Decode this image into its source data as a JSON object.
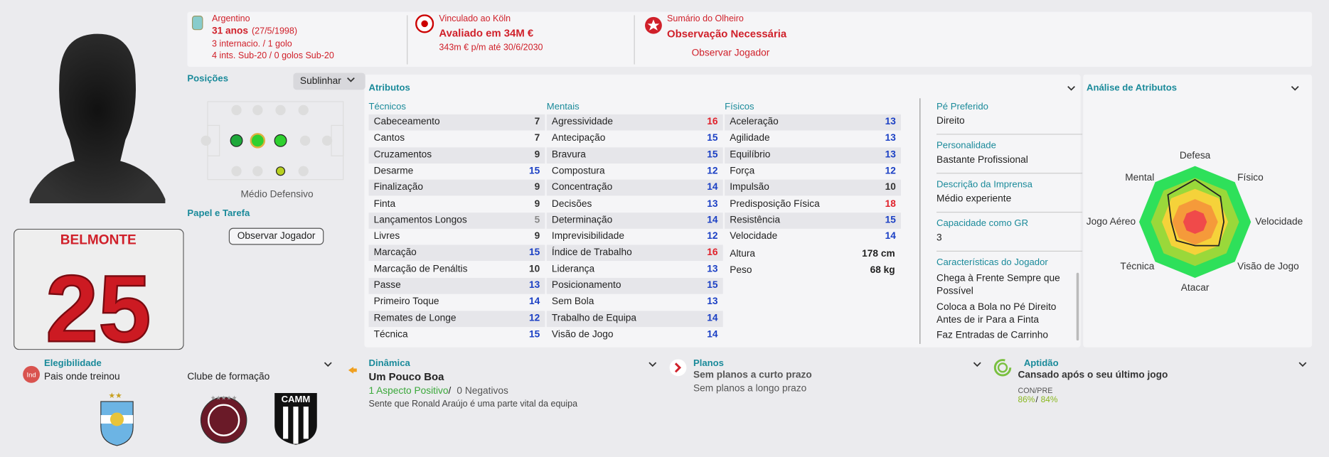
{
  "header": {
    "nationality": "Argentino",
    "age": "31 anos",
    "dob": "(27/5/1998)",
    "caps": "3 internacio. / 1 golo",
    "u20": "4 ints. Sub-20 / 0 golos Sub-20",
    "contract_label": "Vinculado ao Köln",
    "value": "Avaliado em 34M €",
    "wage": "343m € p/m até 30/6/2030",
    "scout_label": "Sumário do Olheiro",
    "scout_status": "Observação Necessária",
    "scout_button": "Observar Jogador"
  },
  "jersey": {
    "name": "BELMONTE",
    "number": "25"
  },
  "positions": {
    "title": "Posições",
    "highlight_button": "Sublinhar",
    "role": "Médio Defensivo",
    "role_title": "Papel e Tarefa",
    "role_button": "Observar Jogador"
  },
  "attributes": {
    "title": "Atributos",
    "groups": [
      {
        "title": "Técnicos",
        "items": [
          {
            "name": "Cabeceamento",
            "value": 7
          },
          {
            "name": "Cantos",
            "value": 7
          },
          {
            "name": "Cruzamentos",
            "value": 9
          },
          {
            "name": "Desarme",
            "value": 15
          },
          {
            "name": "Finalização",
            "value": 9
          },
          {
            "name": "Finta",
            "value": 9
          },
          {
            "name": "Lançamentos Longos",
            "value": 5
          },
          {
            "name": "Livres",
            "value": 9
          },
          {
            "name": "Marcação",
            "value": 15
          },
          {
            "name": "Marcação de Penáltis",
            "value": 10
          },
          {
            "name": "Passe",
            "value": 13
          },
          {
            "name": "Primeiro Toque",
            "value": 14
          },
          {
            "name": "Remates de Longe",
            "value": 12
          },
          {
            "name": "Técnica",
            "value": 15
          }
        ]
      },
      {
        "title": "Mentais",
        "items": [
          {
            "name": "Agressividade",
            "value": 16
          },
          {
            "name": "Antecipação",
            "value": 15
          },
          {
            "name": "Bravura",
            "value": 15
          },
          {
            "name": "Compostura",
            "value": 12
          },
          {
            "name": "Concentração",
            "value": 14
          },
          {
            "name": "Decisões",
            "value": 13
          },
          {
            "name": "Determinação",
            "value": 14
          },
          {
            "name": "Imprevisibilidade",
            "value": 12
          },
          {
            "name": "Índice de Trabalho",
            "value": 16
          },
          {
            "name": "Liderança",
            "value": 13
          },
          {
            "name": "Posicionamento",
            "value": 15
          },
          {
            "name": "Sem Bola",
            "value": 13
          },
          {
            "name": "Trabalho de Equipa",
            "value": 14
          },
          {
            "name": "Visão de Jogo",
            "value": 14
          }
        ]
      },
      {
        "title": "Físicos",
        "items": [
          {
            "name": "Aceleração",
            "value": 13
          },
          {
            "name": "Agilidade",
            "value": 13
          },
          {
            "name": "Equilíbrio",
            "value": 13
          },
          {
            "name": "Força",
            "value": 12
          },
          {
            "name": "Impulsão",
            "value": 10
          },
          {
            "name": "Predisposição Física",
            "value": 18
          },
          {
            "name": "Resistência",
            "value": 15
          },
          {
            "name": "Velocidade",
            "value": 14
          }
        ]
      }
    ],
    "height_label": "Altura",
    "height": "178 cm",
    "weight_label": "Peso",
    "weight": "68 kg"
  },
  "info": [
    {
      "label": "Pé Preferido",
      "value": "Direito"
    },
    {
      "label": "Personalidade",
      "value": "Bastante Profissional"
    },
    {
      "label": "Descrição da Imprensa",
      "value": "Médio experiente"
    },
    {
      "label": "Capacidade como GR",
      "value": "3"
    }
  ],
  "traits_title": "Características do Jogador",
  "traits": [
    "Chega à Frente Sempre que Possível",
    "Coloca a Bola no Pé Direito Antes de ir Para a Finta",
    "Faz Entradas de Carrinho"
  ],
  "analysis": {
    "title": "Análise de Atributos",
    "labels": [
      "Defesa",
      "Físico",
      "Velocidade",
      "Visão de Jogo",
      "Atacar",
      "Técnica",
      "Jogo Aéreo",
      "Mental"
    ]
  },
  "eligibility": {
    "title": "Elegibilidade",
    "badge": "Ind",
    "text": "Pais onde treinou",
    "club_title": "Clube de formação",
    "club_badge": "CAMM"
  },
  "dynamics": {
    "title": "Dinâmica",
    "status": "Um Pouco Boa",
    "positive": "1 Aspecto Positivo",
    "separator": "/",
    "negative": "0 Negativos",
    "note": "Sente que Ronald Araújo é uma parte vital da equipa"
  },
  "plans": {
    "title": "Planos",
    "short": "Sem planos a curto prazo",
    "long": "Sem planos a longo prazo"
  },
  "fitness": {
    "title": "Aptidão",
    "status": "Cansado após o seu último jogo",
    "label": "CON/PRE",
    "condition": "86%",
    "separator": "/",
    "sharpness": "84%"
  }
}
